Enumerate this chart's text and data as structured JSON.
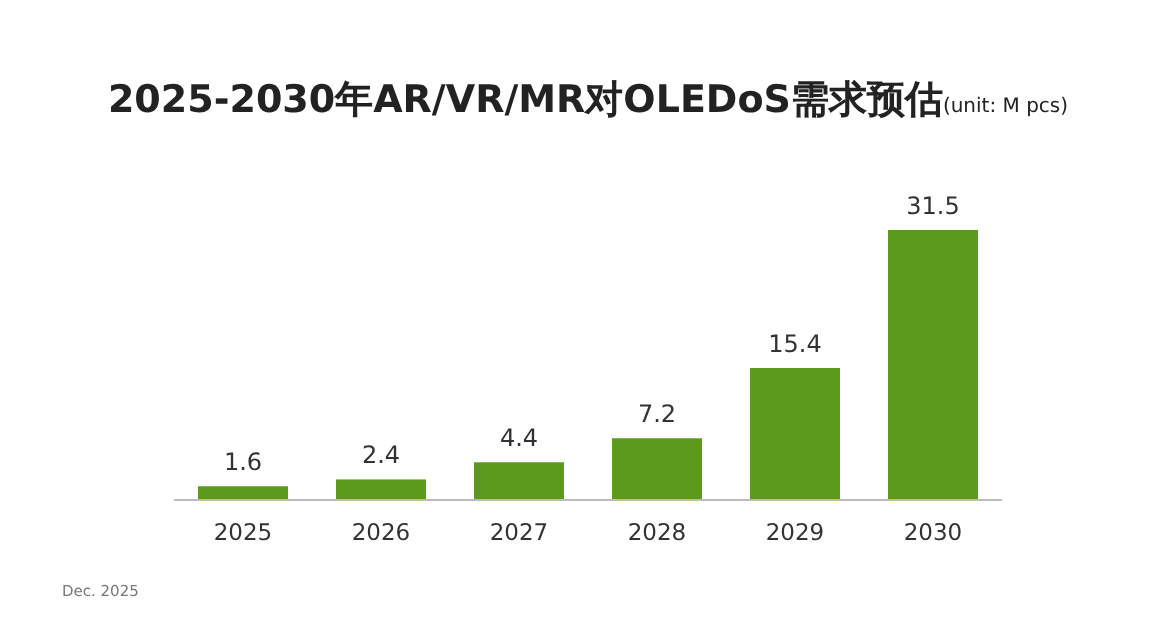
{
  "chart_data": {
    "type": "bar",
    "title": "2025-2030年AR/VR/MR对OLEDoS需求预估",
    "subtitle": "(unit: M pcs)",
    "categories": [
      "2025",
      "2026",
      "2027",
      "2028",
      "2029",
      "2030"
    ],
    "values": [
      1.6,
      2.4,
      4.4,
      7.2,
      15.4,
      31.5
    ],
    "color": "#5b9a1b",
    "data_labels": true,
    "annotations": [
      "Dec. 2025"
    ]
  }
}
